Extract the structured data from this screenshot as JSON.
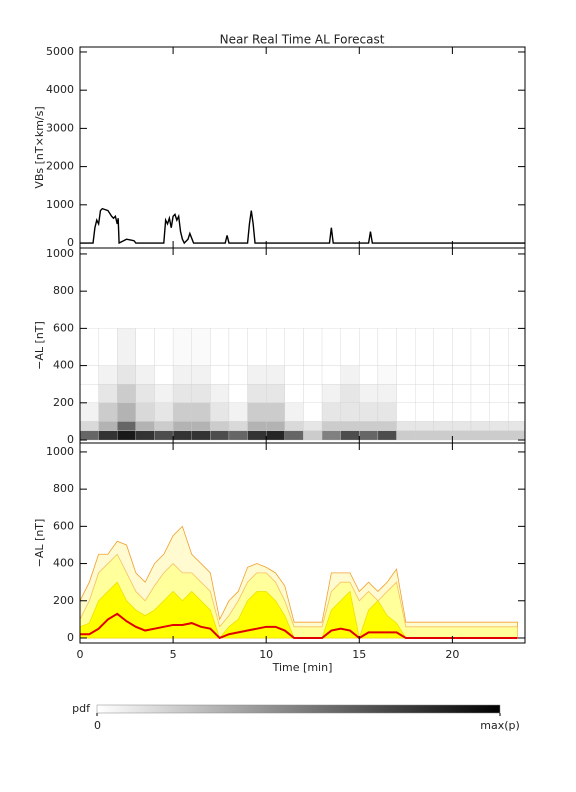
{
  "chart_data": [
    {
      "type": "line",
      "title": "Near Real Time AL Forecast",
      "ylabel": "VBs [nT×km/s]",
      "x": [
        0,
        0.7,
        0.8,
        0.9,
        1.0,
        1.1,
        1.2,
        1.5,
        1.7,
        1.8,
        1.9,
        2.0,
        2.05,
        2.1,
        2.3,
        2.5,
        2.7,
        2.9,
        3.0,
        4.5,
        4.6,
        4.7,
        4.8,
        4.9,
        5.0,
        5.1,
        5.2,
        5.3,
        5.4,
        5.5,
        5.6,
        5.8,
        5.9,
        6.1,
        7.8,
        7.9,
        8.0,
        9.0,
        9.1,
        9.2,
        9.3,
        9.4,
        13.4,
        13.5,
        13.6,
        15.5,
        15.6,
        15.7,
        23.9
      ],
      "values": [
        0,
        0,
        400,
        600,
        500,
        850,
        900,
        850,
        700,
        650,
        700,
        500,
        650,
        0,
        50,
        100,
        80,
        60,
        0,
        0,
        600,
        500,
        650,
        400,
        700,
        750,
        600,
        700,
        300,
        100,
        0,
        100,
        250,
        0,
        0,
        200,
        0,
        0,
        500,
        850,
        500,
        0,
        0,
        400,
        0,
        0,
        300,
        0,
        0
      ],
      "color": "#000000",
      "xlim": [
        0,
        23.9
      ],
      "ylim": [
        -130,
        5130
      ],
      "yticks": [
        0,
        1000,
        2000,
        3000,
        4000,
        5000
      ]
    },
    {
      "type": "heatmap",
      "ylabel": "−AL [nT]",
      "x_bins": [
        0,
        1,
        2,
        3,
        4,
        5,
        6,
        7,
        8,
        9,
        10,
        11,
        12,
        13,
        14,
        15,
        16,
        17,
        18,
        19,
        20,
        21,
        22,
        23,
        23.9
      ],
      "y_bins": [
        0,
        50,
        100,
        200,
        300,
        400,
        600
      ],
      "values": [
        [
          0.6,
          0.15,
          0.05,
          0,
          0,
          0
        ],
        [
          0.8,
          0.3,
          0.2,
          0.1,
          0.05,
          0
        ],
        [
          0.9,
          0.6,
          0.3,
          0.2,
          0.1,
          0.05
        ],
        [
          0.8,
          0.3,
          0.15,
          0.1,
          0.05,
          0
        ],
        [
          0.7,
          0.2,
          0.1,
          0.05,
          0,
          0
        ],
        [
          0.8,
          0.3,
          0.2,
          0.1,
          0.05,
          0.02
        ],
        [
          0.8,
          0.3,
          0.2,
          0.1,
          0.05,
          0.02
        ],
        [
          0.7,
          0.2,
          0.1,
          0.05,
          0,
          0
        ],
        [
          0.6,
          0.15,
          0.05,
          0,
          0,
          0
        ],
        [
          0.8,
          0.3,
          0.2,
          0.1,
          0.05,
          0
        ],
        [
          0.85,
          0.3,
          0.2,
          0.1,
          0.05,
          0
        ],
        [
          0.6,
          0.15,
          0.05,
          0,
          0,
          0
        ],
        [
          0.2,
          0.1,
          0,
          0,
          0,
          0
        ],
        [
          0.5,
          0.2,
          0.1,
          0.05,
          0,
          0
        ],
        [
          0.7,
          0.2,
          0.1,
          0.1,
          0.05,
          0
        ],
        [
          0.6,
          0.2,
          0.1,
          0.05,
          0,
          0
        ],
        [
          0.7,
          0.2,
          0.1,
          0.05,
          0.02,
          0
        ],
        [
          0.2,
          0.1,
          0,
          0,
          0,
          0
        ],
        [
          0.2,
          0.1,
          0,
          0,
          0,
          0
        ],
        [
          0.2,
          0.1,
          0,
          0,
          0,
          0
        ],
        [
          0.2,
          0.1,
          0,
          0,
          0,
          0
        ],
        [
          0.2,
          0.1,
          0,
          0,
          0,
          0
        ],
        [
          0.2,
          0.1,
          0,
          0,
          0,
          0
        ],
        [
          0.2,
          0.1,
          0,
          0,
          0,
          0
        ]
      ],
      "xlim": [
        0,
        23.9
      ],
      "ylim": [
        -16,
        1032
      ],
      "yticks": [
        0,
        200,
        400,
        600,
        800,
        1000
      ],
      "colorbar": {
        "title": "pdf",
        "ticks": [
          0,
          {
            "value": 1,
            "label": "max(p)"
          }
        ]
      }
    },
    {
      "type": "area",
      "ylabel": "−AL [nT]",
      "xlabel": "Time [min]",
      "x": [
        0,
        0.5,
        1,
        1.5,
        2,
        2.5,
        3,
        3.5,
        4,
        4.5,
        5,
        5.5,
        6,
        6.5,
        7,
        7.5,
        8,
        8.5,
        9,
        9.5,
        10,
        10.5,
        11,
        11.5,
        12,
        12.5,
        13,
        13.5,
        14,
        14.5,
        15,
        15.5,
        16,
        16.5,
        17,
        17.5,
        18,
        18.5,
        19,
        19.5,
        20,
        20.5,
        21,
        21.5,
        22,
        22.5,
        23,
        23.5
      ],
      "series": [
        {
          "color": "#f0a030",
          "fill": "#fffad0",
          "values": [
            200,
            300,
            450,
            450,
            520,
            500,
            350,
            300,
            400,
            450,
            550,
            600,
            450,
            400,
            350,
            100,
            200,
            250,
            380,
            400,
            380,
            350,
            280,
            85,
            85,
            85,
            85,
            350,
            350,
            350,
            250,
            300,
            250,
            300,
            370,
            85,
            85,
            85,
            85,
            85,
            85,
            85,
            85,
            85,
            85,
            85,
            85,
            85
          ]
        },
        {
          "color": "#f7c060",
          "fill": "#ffff9c",
          "values": [
            100,
            200,
            350,
            400,
            450,
            350,
            250,
            200,
            280,
            350,
            400,
            350,
            350,
            300,
            250,
            60,
            120,
            200,
            300,
            350,
            350,
            300,
            200,
            60,
            60,
            60,
            60,
            250,
            300,
            300,
            200,
            250,
            200,
            250,
            300,
            60,
            60,
            60,
            60,
            60,
            60,
            60,
            60,
            60,
            60,
            60,
            60,
            60
          ]
        },
        {
          "color": "#f0e000",
          "fill": "#ffff00",
          "values": [
            60,
            80,
            200,
            250,
            300,
            200,
            150,
            120,
            150,
            200,
            250,
            200,
            250,
            200,
            150,
            0,
            60,
            100,
            200,
            250,
            250,
            200,
            120,
            0,
            0,
            0,
            0,
            150,
            200,
            250,
            0,
            150,
            200,
            120,
            80,
            0,
            0,
            0,
            0,
            0,
            0,
            0,
            0,
            0,
            0,
            0,
            0,
            0
          ]
        },
        {
          "color": "#e00000",
          "values": [
            20,
            20,
            50,
            100,
            130,
            90,
            60,
            40,
            50,
            60,
            70,
            70,
            80,
            60,
            50,
            0,
            20,
            30,
            40,
            50,
            60,
            60,
            40,
            0,
            0,
            0,
            0,
            40,
            50,
            40,
            0,
            30,
            30,
            30,
            30,
            0,
            0,
            0,
            0,
            0,
            0,
            0,
            0,
            0,
            0,
            0,
            0,
            0
          ]
        }
      ],
      "xlim": [
        0,
        23.9
      ],
      "xticks": [
        0,
        5,
        10,
        15,
        20
      ],
      "ylim": [
        -27,
        1048
      ],
      "yticks": [
        0,
        200,
        400,
        600,
        800,
        1000
      ]
    }
  ]
}
